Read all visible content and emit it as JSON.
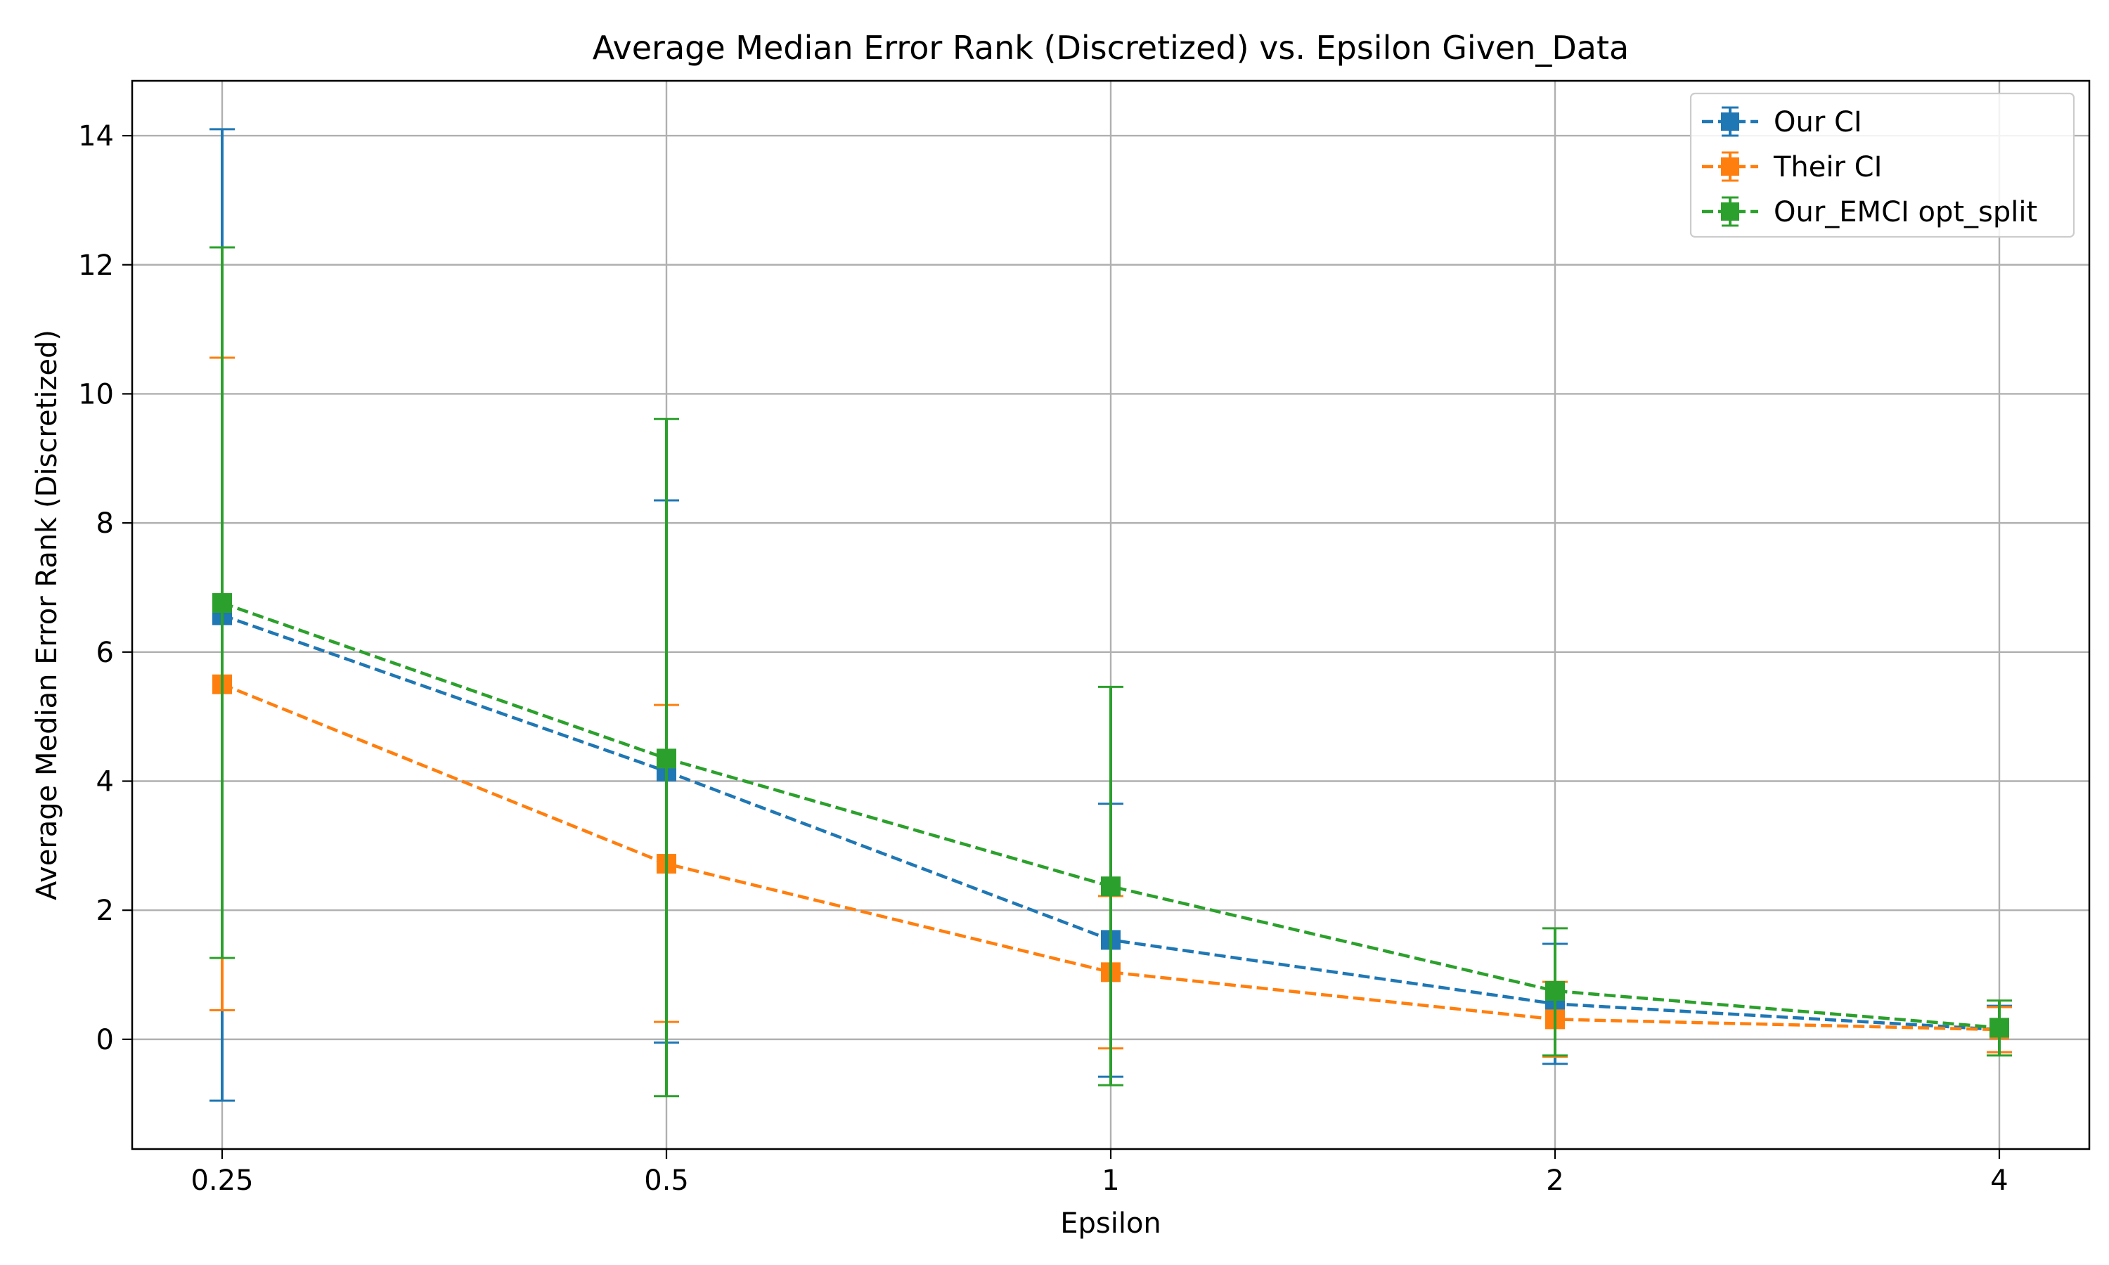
{
  "chart_data": {
    "type": "line",
    "title": "Average Median Error Rank (Discretized) vs. Epsilon Given_Data",
    "xlabel": "Epsilon",
    "ylabel": "Average Median Error Rank (Discretized)",
    "categories": [
      "0.25",
      "0.5",
      "1",
      "2",
      "4"
    ],
    "yticks": [
      0,
      2,
      4,
      6,
      8,
      10,
      12,
      14
    ],
    "ylim": [
      -1.7,
      14.85
    ],
    "grid": true,
    "legend_position": "top-right",
    "line_style": "dashed",
    "marker": "square",
    "error_bars": true,
    "series": [
      {
        "name": "Our CI",
        "color": "#1f77b4",
        "values": [
          6.57,
          4.15,
          1.54,
          0.55,
          0.15
        ],
        "err_low": [
          -0.95,
          -0.05,
          -0.58,
          -0.38,
          -0.2
        ],
        "err_high": [
          14.1,
          8.35,
          3.65,
          1.48,
          0.52
        ]
      },
      {
        "name": "Their CI",
        "color": "#ff7f0e",
        "values": [
          5.5,
          2.72,
          1.04,
          0.31,
          0.15
        ],
        "err_low": [
          0.45,
          0.27,
          -0.14,
          -0.27,
          -0.2
        ],
        "err_high": [
          10.56,
          5.18,
          2.22,
          0.89,
          0.5
        ]
      },
      {
        "name": "Our_EMCI opt_split",
        "color": "#2ca02c",
        "values": [
          6.76,
          4.35,
          2.37,
          0.75,
          0.18
        ],
        "err_low": [
          1.26,
          -0.88,
          -0.71,
          -0.25,
          -0.25
        ],
        "err_high": [
          12.27,
          9.61,
          5.46,
          1.72,
          0.6
        ]
      }
    ]
  }
}
